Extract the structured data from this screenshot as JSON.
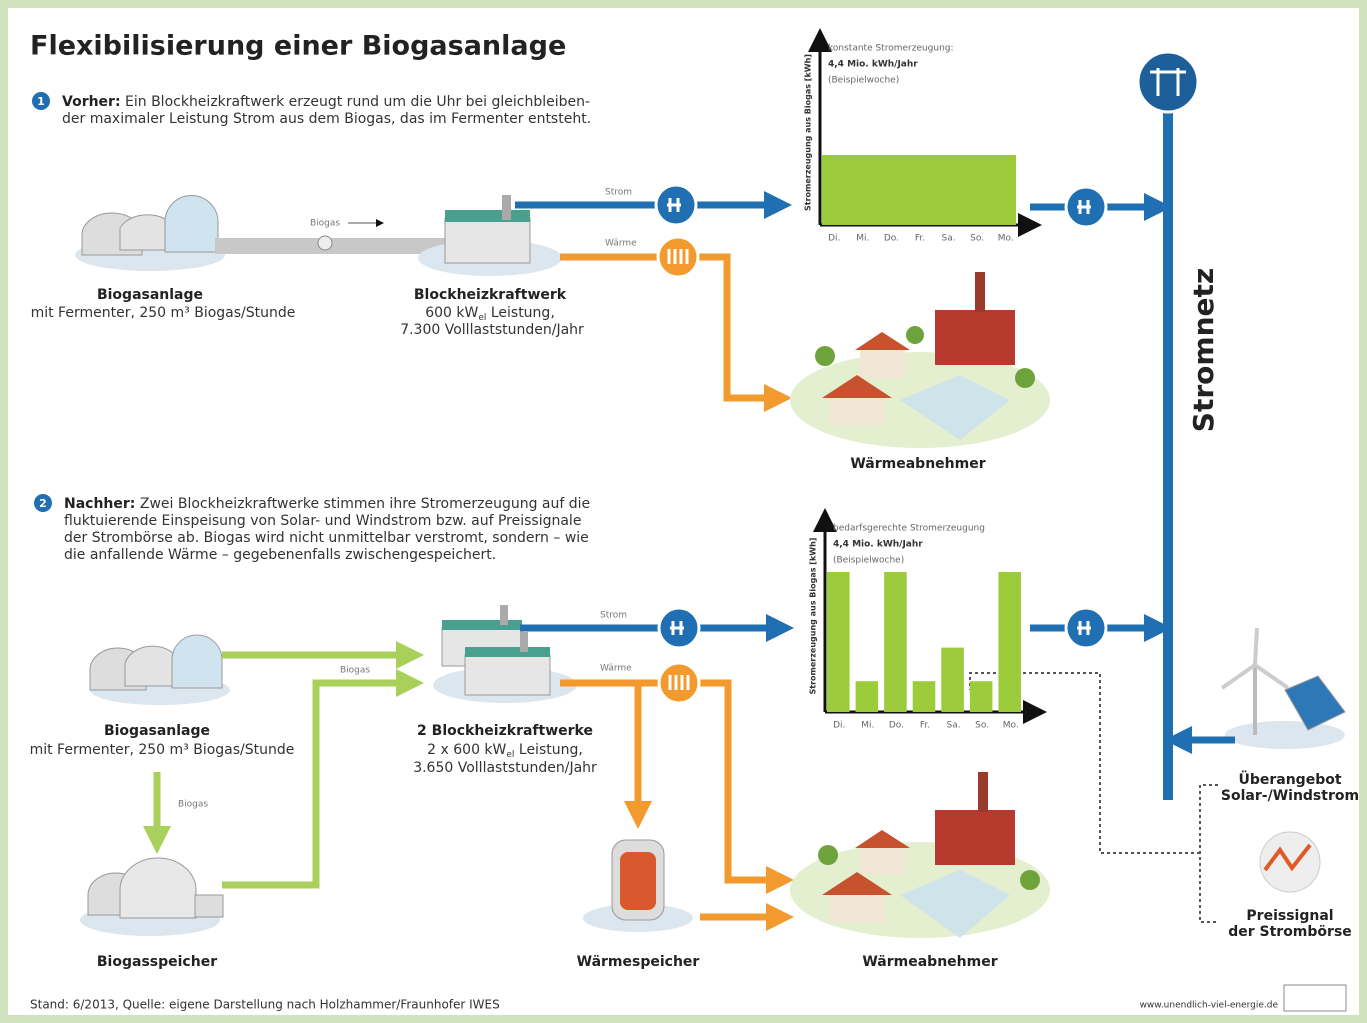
{
  "header": {
    "title": "Flexibilisierung einer Biogasanlage"
  },
  "step1": {
    "number": "1",
    "lead": "Vorher:",
    "lines": [
      "Ein Blockheizkraftwerk erzeugt rund um die Uhr bei gleichbleiben-",
      "der maximaler Leistung Strom aus dem Biogas, das im Fermenter entsteht."
    ]
  },
  "top": {
    "biogas_plant": {
      "title": "Biogasanlage",
      "caption": "mit Fermenter, 250 m³ Biogas/Stunde"
    },
    "flow_biogas": "Biogas",
    "flow_strom": "Strom",
    "flow_waerme": "Wärme",
    "chp": {
      "title": "Blockheizkraftwerk",
      "line1": {
        "pre": "600 kW",
        "sub": "el",
        "post": " Leistung,"
      },
      "line2": "7.300 Volllaststunden/Jahr"
    },
    "heat_consumer": "Wärmeabnehmer"
  },
  "chart_top": {
    "type": "bar",
    "y_label": "Stromerzeugung aus Biogas [kWh]",
    "note": [
      "konstante Stromerzeugung:",
      "4,4 Mio. kWh/Jahr",
      "(Beispielwoche)"
    ],
    "categories": [
      "Di.",
      "Mi.",
      "Do.",
      "Fr.",
      "Sa.",
      "So.",
      "Mo."
    ],
    "value": 50,
    "ylim": [
      0,
      100
    ],
    "color": "#9ccc3c"
  },
  "grid": "Stromnetz",
  "step2": {
    "number": "2",
    "lead": "Nachher:",
    "lines": [
      "Zwei Blockheizkraftwerke stimmen ihre Stromerzeugung auf die",
      "fluktuierende Einspeisung von Solar- und Windstrom bzw. auf Preissignale",
      "der Strombörse ab. Biogas wird nicht unmittelbar verstromt, sondern – wie",
      "die anfallende Wärme – gegebenenfalls zwischengespeichert."
    ]
  },
  "bottom": {
    "biogas_plant": {
      "title": "Biogasanlage",
      "caption": "mit Fermenter, 250 m³ Biogas/Stunde"
    },
    "flow_biogas": "Biogas",
    "flow_biogas_storage": "Biogas",
    "flow_strom": "Strom",
    "flow_waerme": "Wärme",
    "chp": {
      "title": "2 Blockheizkraftwerke",
      "line1": {
        "pre": "2 x 600 kW",
        "sub": "el",
        "post": " Leistung,"
      },
      "line2": "3.650 Volllaststunden/Jahr"
    },
    "gas_storage": "Biogasspeicher",
    "heat_storage": "Wärmespeicher",
    "heat_consumer": "Wärmeabnehmer",
    "surplus": [
      "Überangebot",
      "Solar-/Windstrom"
    ],
    "price": [
      "Preissignal",
      "der Strombörse"
    ]
  },
  "chart_bottom": {
    "type": "bar",
    "y_label": "Stromerzeugung aus Biogas [kWh]",
    "note": [
      "bedarfsgerechte Stromerzeugung",
      "4,4 Mio. kWh/Jahr",
      "(Beispielwoche)"
    ],
    "categories": [
      "Di.",
      "Mi.",
      "Do.",
      "Fr.",
      "Sa.",
      "So.",
      "Mo."
    ],
    "values": [
      100,
      22,
      100,
      22,
      46,
      22,
      100
    ],
    "ylim": [
      0,
      100
    ],
    "color": "#9ccc3c"
  },
  "footer": {
    "source": "Stand: 6/2013, Quelle: eigene Darstellung nach Holzhammer/Fraunhofer IWES",
    "url": "www.unendlich-viel-energie.de"
  }
}
